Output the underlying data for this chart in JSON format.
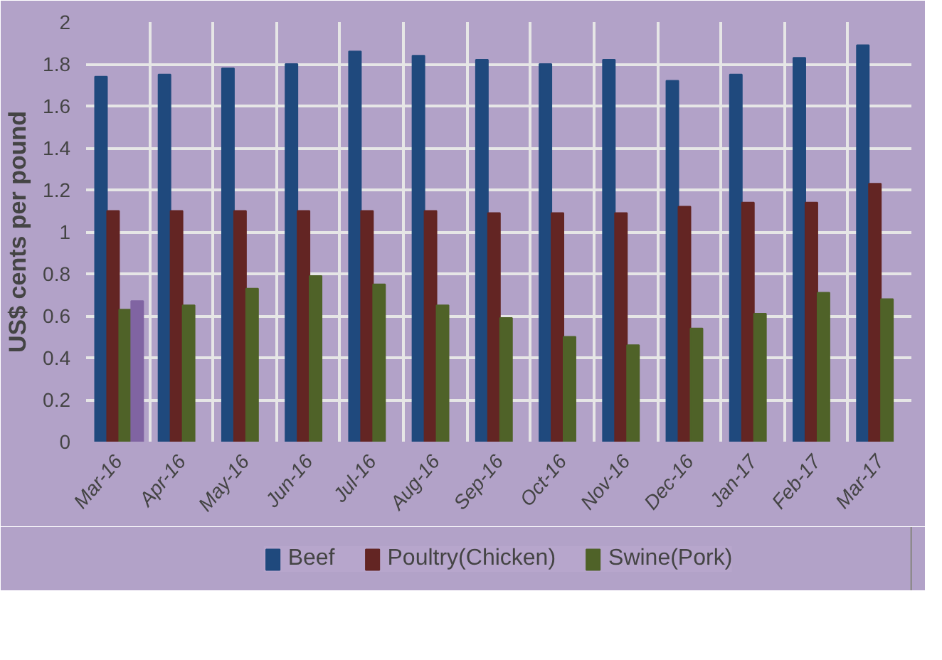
{
  "chart_data": {
    "type": "bar",
    "ylabel": "US$ cents per pound",
    "categories": [
      "Mar-16",
      "Apr-16",
      "May-16",
      "Jun-16",
      "Jul-16",
      "Aug-16",
      "Sep-16",
      "Oct-16",
      "Nov-16",
      "Dec-16",
      "Jan-17",
      "Feb-17",
      "Mar-17"
    ],
    "series": [
      {
        "name": "Beef",
        "color": "#1f497d",
        "values": [
          1.74,
          1.75,
          1.78,
          1.8,
          1.86,
          1.84,
          1.82,
          1.8,
          1.82,
          1.72,
          1.75,
          1.83,
          1.89
        ]
      },
      {
        "name": "Poultry(Chicken)",
        "color": "#632523",
        "values": [
          1.1,
          1.1,
          1.1,
          1.1,
          1.1,
          1.1,
          1.09,
          1.09,
          1.09,
          1.12,
          1.14,
          1.14,
          1.23
        ]
      },
      {
        "name": "Swine(Pork)",
        "color": "#4f6228",
        "values": [
          0.63,
          0.65,
          0.73,
          0.79,
          0.75,
          0.65,
          0.59,
          0.5,
          0.46,
          0.54,
          0.61,
          0.71,
          0.68
        ]
      },
      {
        "color": "#8064a2",
        "values": [
          0.67,
          null,
          null,
          null,
          null,
          null,
          null,
          null,
          null,
          null,
          null,
          null,
          null
        ]
      }
    ],
    "ylim": [
      0,
      2
    ],
    "yticks": [
      0,
      0.2,
      0.4,
      0.6,
      0.8,
      1,
      1.2,
      1.4,
      1.6,
      1.8,
      2
    ],
    "grid": true,
    "legend": "bottom"
  }
}
